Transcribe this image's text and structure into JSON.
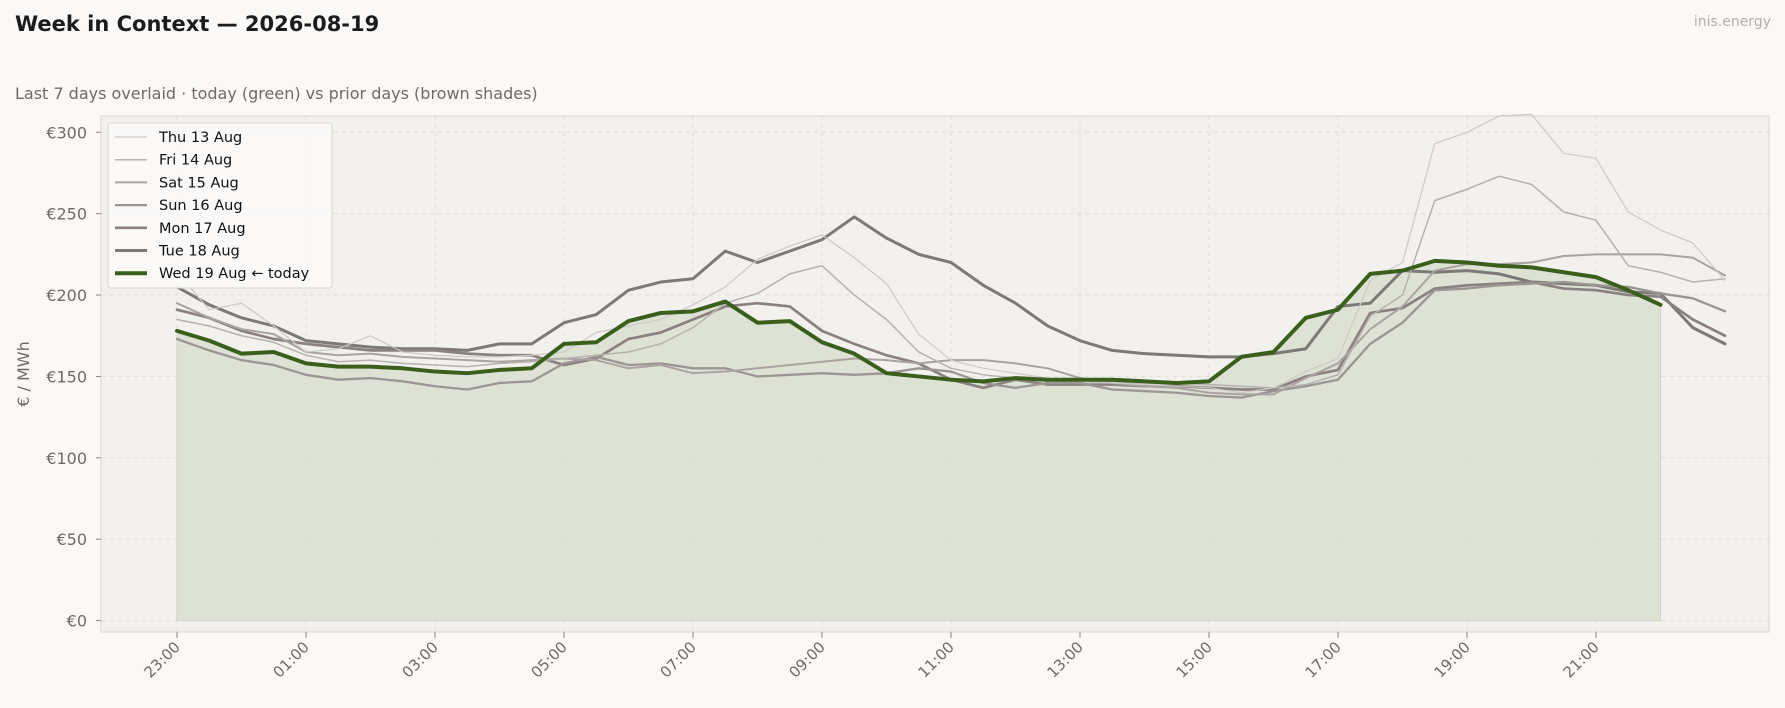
{
  "page": {
    "title": "Week in Context — 2026-08-19",
    "subtitle": "Last 7 days overlaid  ·  today (green) vs prior days (brown shades)",
    "brand": "inis.energy"
  },
  "colors": {
    "background": "#faf9f7",
    "plot_background": "#f2f1ed",
    "today": "#3a5e1c",
    "today_fill": "#d9dfcf",
    "prior_days": [
      "#cdcac6",
      "#b6b2ae",
      "#aba3a1",
      "#9b9594",
      "#8a8180",
      "#7d7977"
    ]
  },
  "chart_data": {
    "type": "line",
    "title": "Week in Context — 2026-08-19",
    "subtitle": "Last 7 days overlaid  ·  today (green) vs prior days (brown shades)",
    "xlabel": "",
    "ylabel": "€ / MWh",
    "ylim": [
      -7,
      310
    ],
    "y_ticks": [
      0,
      50,
      100,
      150,
      200,
      250,
      300
    ],
    "y_tick_labels": [
      "€0",
      "€50",
      "€100",
      "€150",
      "€200",
      "€250",
      "€300"
    ],
    "x_start": "23:00",
    "x_step_minutes": 30,
    "x_tick_labels": [
      "23:00",
      "01:00",
      "03:00",
      "05:00",
      "07:00",
      "09:00",
      "11:00",
      "13:00",
      "15:00",
      "17:00",
      "19:00",
      "21:00"
    ],
    "x_tick_every": 4,
    "grid": true,
    "legend_position": "top-left",
    "today_series_index": 6,
    "today_fill": true,
    "series": [
      {
        "name": "Thu 13 Aug",
        "values": [
          214,
          191,
          195,
          181,
          165,
          167,
          175,
          165,
          163,
          162,
          162,
          163,
          165,
          177,
          181,
          185,
          194,
          205,
          222,
          230,
          237,
          223,
          207,
          176,
          160,
          155,
          152,
          149,
          147,
          146,
          145,
          144,
          143,
          140,
          143,
          153,
          161,
          209,
          220,
          293,
          300,
          310,
          311,
          287,
          284,
          251,
          240,
          232,
          209
        ]
      },
      {
        "name": "Fri 14 Aug",
        "values": [
          185,
          181,
          175,
          171,
          163,
          159,
          160,
          158,
          157,
          156,
          158,
          159,
          161,
          163,
          165,
          170,
          180,
          195,
          201,
          213,
          218,
          200,
          185,
          165,
          155,
          151,
          149,
          147,
          147,
          146,
          146,
          146,
          145,
          144,
          143,
          145,
          151,
          187,
          200,
          258,
          265,
          273,
          268,
          251,
          246,
          218,
          214,
          208,
          210
        ]
      },
      {
        "name": "Sat 15 Aug",
        "values": [
          195,
          186,
          179,
          176,
          165,
          163,
          164,
          162,
          161,
          160,
          159,
          160,
          161,
          160,
          155,
          157,
          152,
          153,
          155,
          157,
          159,
          161,
          160,
          158,
          160,
          160,
          158,
          155,
          149,
          146,
          144,
          143,
          140,
          139,
          139,
          149,
          158,
          179,
          193,
          215,
          219,
          219,
          220,
          224,
          225,
          225,
          225,
          223,
          212
        ]
      },
      {
        "name": "Sun 16 Aug",
        "values": [
          173,
          166,
          160,
          157,
          151,
          148,
          149,
          147,
          144,
          142,
          146,
          147,
          158,
          162,
          157,
          158,
          155,
          155,
          150,
          151,
          152,
          151,
          152,
          155,
          153,
          146,
          143,
          146,
          146,
          142,
          141,
          140,
          138,
          137,
          141,
          144,
          148,
          170,
          183,
          203,
          204,
          206,
          207,
          208,
          206,
          205,
          201,
          198,
          190
        ]
      },
      {
        "name": "Mon 17 Aug",
        "values": [
          191,
          186,
          178,
          173,
          170,
          168,
          166,
          166,
          166,
          164,
          163,
          163,
          157,
          161,
          173,
          177,
          185,
          193,
          195,
          193,
          178,
          170,
          163,
          158,
          148,
          143,
          148,
          145,
          145,
          145,
          144,
          144,
          143,
          142,
          142,
          150,
          154,
          189,
          192,
          204,
          206,
          207,
          208,
          204,
          203,
          200,
          199,
          185,
          175
        ]
      },
      {
        "name": "Tue 18 Aug",
        "values": [
          205,
          194,
          186,
          181,
          172,
          170,
          168,
          167,
          167,
          166,
          170,
          170,
          183,
          188,
          203,
          208,
          210,
          227,
          220,
          227,
          234,
          248,
          235,
          225,
          220,
          206,
          195,
          181,
          172,
          166,
          164,
          163,
          162,
          162,
          164,
          167,
          193,
          195,
          215,
          214,
          215,
          213,
          208,
          207,
          206,
          202,
          201,
          180,
          170
        ]
      },
      {
        "name": "Wed 19 Aug  ← today",
        "values": [
          178,
          172,
          164,
          165,
          158,
          156,
          156,
          155,
          153,
          152,
          154,
          155,
          170,
          171,
          184,
          189,
          190,
          196,
          183,
          184,
          171,
          164,
          152,
          150,
          148,
          147,
          149,
          148,
          148,
          148,
          147,
          146,
          147,
          162,
          165,
          186,
          191,
          213,
          215,
          221,
          220,
          218,
          217,
          214,
          211,
          203,
          194
        ]
      }
    ]
  }
}
